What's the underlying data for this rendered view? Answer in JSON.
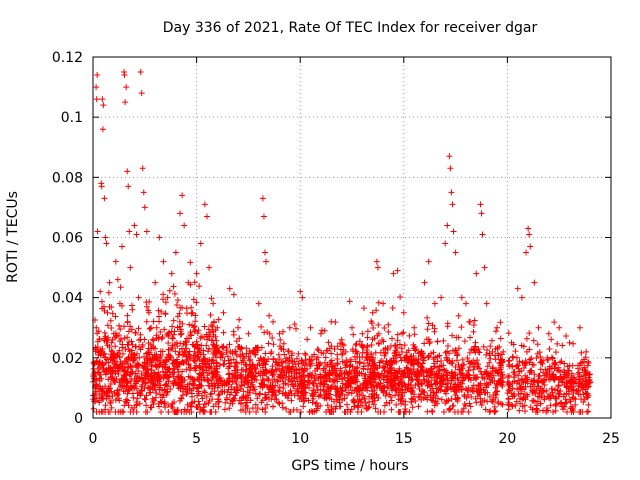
{
  "chart_data": {
    "type": "scatter",
    "title": "Day 336 of 2021, Rate Of TEC Index for receiver dgar",
    "xlabel": "GPS time / hours",
    "ylabel": "ROTI / TECUs",
    "xlim": [
      0,
      25
    ],
    "ylim": [
      0,
      0.12
    ],
    "xticks": [
      0,
      5,
      10,
      15,
      20,
      25
    ],
    "xtick_labels": [
      "0",
      "5",
      "10",
      "15",
      "20",
      "25"
    ],
    "yticks": [
      0,
      0.02,
      0.04,
      0.06,
      0.08,
      0.1,
      0.12
    ],
    "ytick_labels": [
      "0",
      "0.02",
      "0.04",
      "0.06",
      "0.08",
      "0.1",
      "0.12"
    ],
    "grid": true,
    "marker": "plus",
    "color": "#ff0000",
    "series": [
      {
        "name": "ROTI",
        "points": [
          [
            0.0,
            0.012
          ],
          [
            0.05,
            0.018
          ],
          [
            0.1,
            0.008
          ],
          [
            0.15,
            0.11
          ],
          [
            0.18,
            0.106
          ],
          [
            0.2,
            0.114
          ],
          [
            0.22,
            0.062
          ],
          [
            0.25,
            0.021
          ],
          [
            0.3,
            0.015
          ],
          [
            0.35,
            0.042
          ],
          [
            0.4,
            0.078
          ],
          [
            0.42,
            0.077
          ],
          [
            0.45,
            0.106
          ],
          [
            0.48,
            0.096
          ],
          [
            0.5,
            0.104
          ],
          [
            0.55,
            0.073
          ],
          [
            0.6,
            0.06
          ],
          [
            0.65,
            0.058
          ],
          [
            0.7,
            0.035
          ],
          [
            0.8,
            0.045
          ],
          [
            0.9,
            0.025
          ],
          [
            1.0,
            0.028
          ],
          [
            1.1,
            0.052
          ],
          [
            1.2,
            0.046
          ],
          [
            1.3,
            0.038
          ],
          [
            1.4,
            0.057
          ],
          [
            1.5,
            0.115
          ],
          [
            1.52,
            0.114
          ],
          [
            1.55,
            0.105
          ],
          [
            1.6,
            0.11
          ],
          [
            1.65,
            0.082
          ],
          [
            1.7,
            0.077
          ],
          [
            1.75,
            0.062
          ],
          [
            1.8,
            0.05
          ],
          [
            1.9,
            0.036
          ],
          [
            2.0,
            0.064
          ],
          [
            2.1,
            0.061
          ],
          [
            2.2,
            0.04
          ],
          [
            2.3,
            0.115
          ],
          [
            2.35,
            0.108
          ],
          [
            2.4,
            0.083
          ],
          [
            2.45,
            0.075
          ],
          [
            2.5,
            0.07
          ],
          [
            2.6,
            0.062
          ],
          [
            2.7,
            0.035
          ],
          [
            2.8,
            0.03
          ],
          [
            3.0,
            0.045
          ],
          [
            3.2,
            0.06
          ],
          [
            3.4,
            0.052
          ],
          [
            3.6,
            0.04
          ],
          [
            3.8,
            0.048
          ],
          [
            4.0,
            0.055
          ],
          [
            4.2,
            0.068
          ],
          [
            4.3,
            0.074
          ],
          [
            4.4,
            0.064
          ],
          [
            4.6,
            0.045
          ],
          [
            4.8,
            0.035
          ],
          [
            5.0,
            0.048
          ],
          [
            5.2,
            0.058
          ],
          [
            5.4,
            0.071
          ],
          [
            5.5,
            0.067
          ],
          [
            5.6,
            0.05
          ],
          [
            5.8,
            0.038
          ],
          [
            6.0,
            0.03
          ],
          [
            6.3,
            0.035
          ],
          [
            6.6,
            0.043
          ],
          [
            6.8,
            0.041
          ],
          [
            7.0,
            0.03
          ],
          [
            7.5,
            0.028
          ],
          [
            8.0,
            0.038
          ],
          [
            8.2,
            0.073
          ],
          [
            8.25,
            0.067
          ],
          [
            8.3,
            0.055
          ],
          [
            8.35,
            0.052
          ],
          [
            8.5,
            0.034
          ],
          [
            9.0,
            0.028
          ],
          [
            9.5,
            0.03
          ],
          [
            10.0,
            0.042
          ],
          [
            10.1,
            0.04
          ],
          [
            10.5,
            0.03
          ],
          [
            11.0,
            0.028
          ],
          [
            11.5,
            0.032
          ],
          [
            12.0,
            0.026
          ],
          [
            12.5,
            0.03
          ],
          [
            13.0,
            0.028
          ],
          [
            13.5,
            0.035
          ],
          [
            13.7,
            0.052
          ],
          [
            13.75,
            0.05
          ],
          [
            14.0,
            0.038
          ],
          [
            14.5,
            0.048
          ],
          [
            14.7,
            0.049
          ],
          [
            15.0,
            0.035
          ],
          [
            15.5,
            0.03
          ],
          [
            16.0,
            0.045
          ],
          [
            16.2,
            0.052
          ],
          [
            16.5,
            0.038
          ],
          [
            16.8,
            0.04
          ],
          [
            17.0,
            0.058
          ],
          [
            17.1,
            0.064
          ],
          [
            17.2,
            0.087
          ],
          [
            17.25,
            0.083
          ],
          [
            17.3,
            0.075
          ],
          [
            17.35,
            0.071
          ],
          [
            17.4,
            0.062
          ],
          [
            17.5,
            0.055
          ],
          [
            17.8,
            0.04
          ],
          [
            18.0,
            0.038
          ],
          [
            18.2,
            0.032
          ],
          [
            18.5,
            0.048
          ],
          [
            18.7,
            0.071
          ],
          [
            18.75,
            0.068
          ],
          [
            18.8,
            0.061
          ],
          [
            18.9,
            0.05
          ],
          [
            19.0,
            0.038
          ],
          [
            19.5,
            0.03
          ],
          [
            19.8,
            0.022
          ],
          [
            20.2,
            0.025
          ],
          [
            20.5,
            0.043
          ],
          [
            20.7,
            0.04
          ],
          [
            20.9,
            0.055
          ],
          [
            21.0,
            0.063
          ],
          [
            21.05,
            0.061
          ],
          [
            21.1,
            0.057
          ],
          [
            21.3,
            0.045
          ],
          [
            21.5,
            0.03
          ],
          [
            22.0,
            0.028
          ],
          [
            22.5,
            0.03
          ],
          [
            23.0,
            0.025
          ],
          [
            23.5,
            0.03
          ],
          [
            23.8,
            0.022
          ],
          [
            24.0,
            0.012
          ]
        ],
        "density": {
          "note": "dense background noise clusters, [x_start, x_end, y_center, y_spread, count]",
          "clusters": [
            [
              0.0,
              3.0,
              0.015,
              0.01,
              500
            ],
            [
              3.0,
              6.0,
              0.016,
              0.012,
              500
            ],
            [
              6.0,
              10.0,
              0.013,
              0.008,
              480
            ],
            [
              10.0,
              13.0,
              0.012,
              0.008,
              400
            ],
            [
              13.0,
              16.0,
              0.014,
              0.009,
              460
            ],
            [
              16.0,
              19.8,
              0.013,
              0.008,
              440
            ],
            [
              20.0,
              24.0,
              0.011,
              0.007,
              420
            ]
          ]
        }
      }
    ]
  }
}
